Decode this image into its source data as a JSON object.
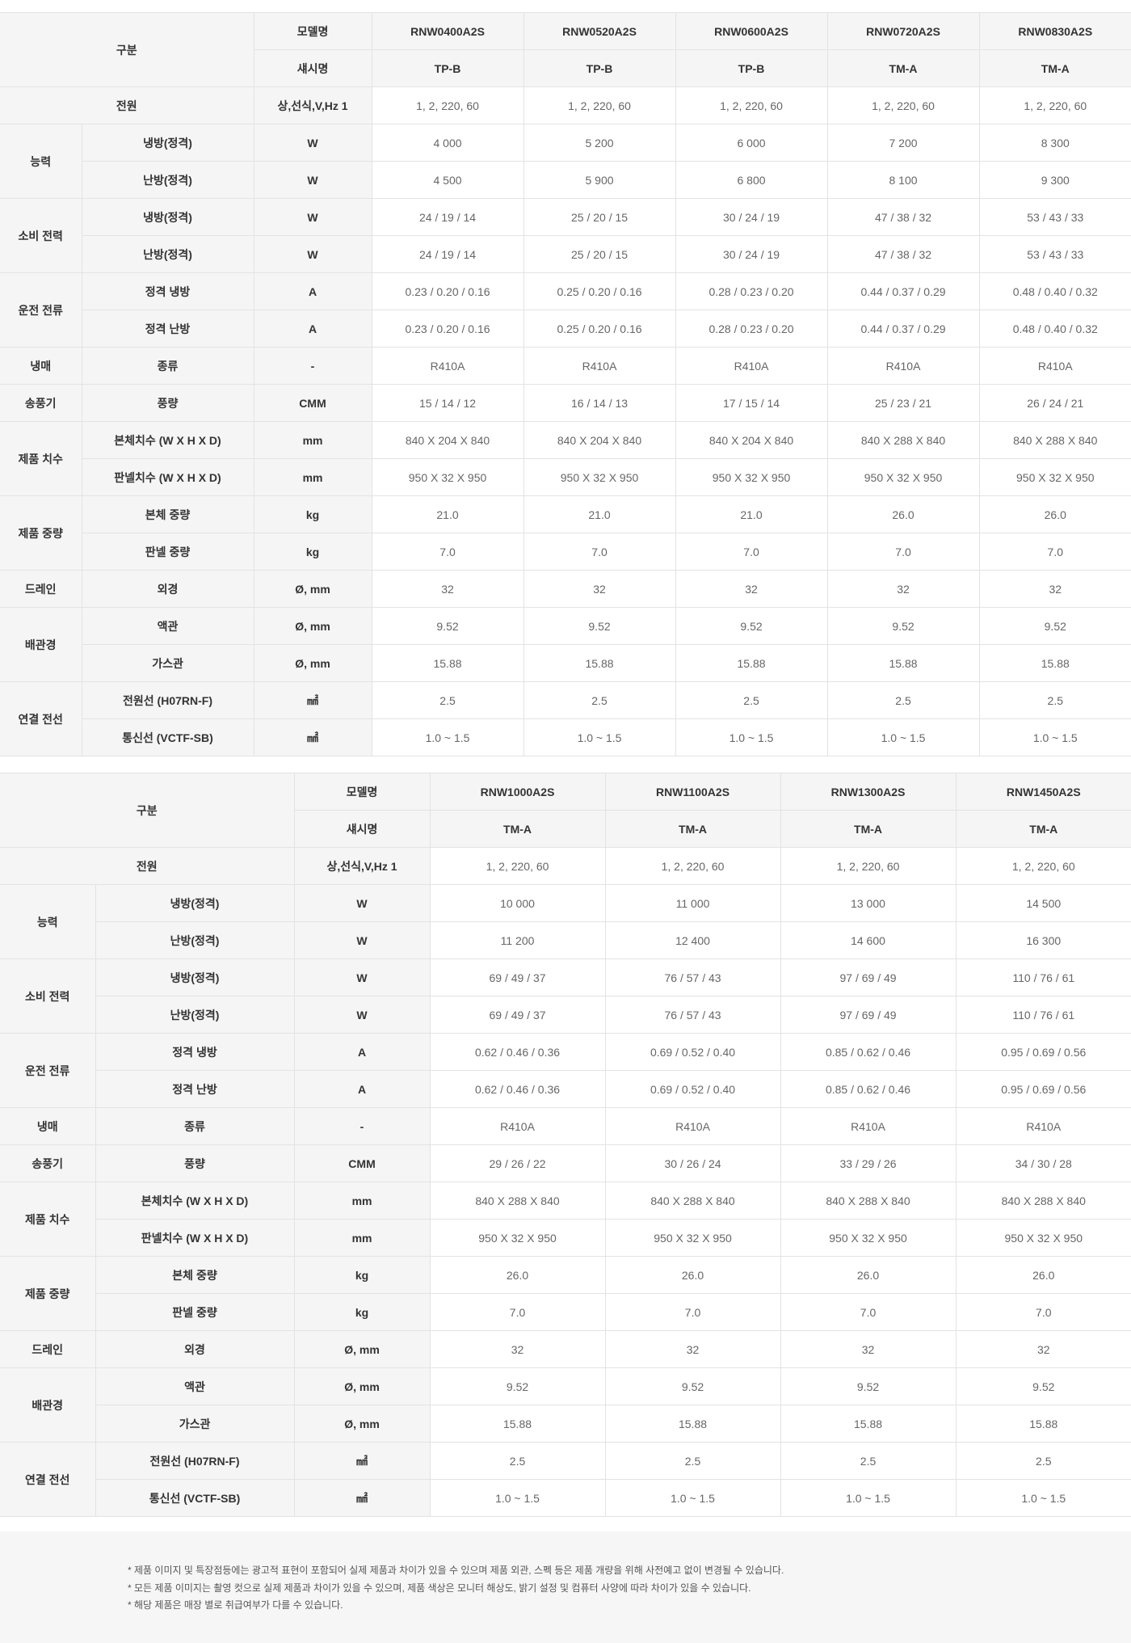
{
  "header_labels": {
    "category": "구분",
    "model": "모델명",
    "chassis": "섀시명"
  },
  "tables": [
    {
      "models": [
        "RNW0400A2S",
        "RNW0520A2S",
        "RNW0600A2S",
        "RNW0720A2S",
        "RNW0830A2S"
      ],
      "chassis": [
        "TP-B",
        "TP-B",
        "TP-B",
        "TM-A",
        "TM-A"
      ],
      "rows": [
        {
          "group": "전원",
          "label": "",
          "unit": "상,선식,V,Hz 1",
          "values": [
            "1, 2, 220, 60",
            "1, 2, 220, 60",
            "1, 2, 220, 60",
            "1, 2, 220, 60",
            "1, 2, 220, 60"
          ]
        },
        {
          "group": "능력",
          "label": "냉방(정격)",
          "unit": "W",
          "values": [
            "4 000",
            "5 200",
            "6 000",
            "7 200",
            "8 300"
          ]
        },
        {
          "group": "능력",
          "label": "난방(정격)",
          "unit": "W",
          "values": [
            "4 500",
            "5 900",
            "6 800",
            "8 100",
            "9 300"
          ]
        },
        {
          "group": "소비 전력",
          "label": "냉방(정격)",
          "unit": "W",
          "values": [
            "24 / 19 / 14",
            "25 / 20 / 15",
            "30 / 24 / 19",
            "47 / 38 / 32",
            "53 / 43 / 33"
          ]
        },
        {
          "group": "소비 전력",
          "label": "난방(정격)",
          "unit": "W",
          "values": [
            "24 / 19 / 14",
            "25 / 20 / 15",
            "30 / 24 / 19",
            "47 / 38 / 32",
            "53 / 43 / 33"
          ]
        },
        {
          "group": "운전 전류",
          "label": "정격 냉방",
          "unit": "A",
          "values": [
            "0.23 / 0.20 / 0.16",
            "0.25 / 0.20 / 0.16",
            "0.28 / 0.23 / 0.20",
            "0.44 / 0.37 / 0.29",
            "0.48 / 0.40 / 0.32"
          ]
        },
        {
          "group": "운전 전류",
          "label": "정격 난방",
          "unit": "A",
          "values": [
            "0.23 / 0.20 / 0.16",
            "0.25 / 0.20 / 0.16",
            "0.28 / 0.23 / 0.20",
            "0.44 / 0.37 / 0.29",
            "0.48 / 0.40 / 0.32"
          ]
        },
        {
          "group": "냉매",
          "label": "종류",
          "unit": "-",
          "values": [
            "R410A",
            "R410A",
            "R410A",
            "R410A",
            "R410A"
          ]
        },
        {
          "group": "송풍기",
          "label": "풍량",
          "unit": "CMM",
          "values": [
            "15 / 14 / 12",
            "16 / 14 / 13",
            "17 / 15 / 14",
            "25 / 23 / 21",
            "26 / 24 / 21"
          ]
        },
        {
          "group": "제품 치수",
          "label": "본체치수 (W X H X D)",
          "unit": "mm",
          "values": [
            "840 X 204 X 840",
            "840 X 204 X 840",
            "840 X 204 X 840",
            "840 X 288 X 840",
            "840 X 288 X 840"
          ]
        },
        {
          "group": "제품 치수",
          "label": "판넬치수 (W X H X D)",
          "unit": "mm",
          "values": [
            "950 X 32 X 950",
            "950 X 32 X 950",
            "950 X 32 X 950",
            "950 X 32 X 950",
            "950 X 32 X 950"
          ]
        },
        {
          "group": "제품 중량",
          "label": "본체 중량",
          "unit": "kg",
          "values": [
            "21.0",
            "21.0",
            "21.0",
            "26.0",
            "26.0"
          ]
        },
        {
          "group": "제품 중량",
          "label": "판넬 중량",
          "unit": "kg",
          "values": [
            "7.0",
            "7.0",
            "7.0",
            "7.0",
            "7.0"
          ]
        },
        {
          "group": "드레인",
          "label": "외경",
          "unit": "Ø, mm",
          "values": [
            "32",
            "32",
            "32",
            "32",
            "32"
          ]
        },
        {
          "group": "배관경",
          "label": "액관",
          "unit": "Ø, mm",
          "values": [
            "9.52",
            "9.52",
            "9.52",
            "9.52",
            "9.52"
          ]
        },
        {
          "group": "배관경",
          "label": "가스관",
          "unit": "Ø, mm",
          "values": [
            "15.88",
            "15.88",
            "15.88",
            "15.88",
            "15.88"
          ]
        },
        {
          "group": "연결 전선",
          "label": "전원선 (H07RN-F)",
          "unit": "㎟",
          "values": [
            "2.5",
            "2.5",
            "2.5",
            "2.5",
            "2.5"
          ]
        },
        {
          "group": "연결 전선",
          "label": "통신선 (VCTF-SB)",
          "unit": "㎟",
          "values": [
            "1.0 ~ 1.5",
            "1.0 ~ 1.5",
            "1.0 ~ 1.5",
            "1.0 ~ 1.5",
            "1.0 ~ 1.5"
          ]
        }
      ]
    },
    {
      "models": [
        "RNW1000A2S",
        "RNW1100A2S",
        "RNW1300A2S",
        "RNW1450A2S"
      ],
      "chassis": [
        "TM-A",
        "TM-A",
        "TM-A",
        "TM-A"
      ],
      "rows": [
        {
          "group": "전원",
          "label": "",
          "unit": "상,선식,V,Hz 1",
          "values": [
            "1, 2, 220, 60",
            "1, 2, 220, 60",
            "1, 2, 220, 60",
            "1, 2, 220, 60"
          ]
        },
        {
          "group": "능력",
          "label": "냉방(정격)",
          "unit": "W",
          "values": [
            "10 000",
            "11 000",
            "13 000",
            "14 500"
          ]
        },
        {
          "group": "능력",
          "label": "난방(정격)",
          "unit": "W",
          "values": [
            "11 200",
            "12 400",
            "14 600",
            "16 300"
          ]
        },
        {
          "group": "소비 전력",
          "label": "냉방(정격)",
          "unit": "W",
          "values": [
            "69 / 49 / 37",
            "76 / 57 / 43",
            "97 / 69 / 49",
            "110 / 76 / 61"
          ]
        },
        {
          "group": "소비 전력",
          "label": "난방(정격)",
          "unit": "W",
          "values": [
            "69 / 49 / 37",
            "76 / 57 / 43",
            "97 / 69 / 49",
            "110 / 76 / 61"
          ]
        },
        {
          "group": "운전 전류",
          "label": "정격 냉방",
          "unit": "A",
          "values": [
            "0.62 / 0.46 / 0.36",
            "0.69 / 0.52 / 0.40",
            "0.85 / 0.62 / 0.46",
            "0.95 / 0.69 / 0.56"
          ]
        },
        {
          "group": "운전 전류",
          "label": "정격 난방",
          "unit": "A",
          "values": [
            "0.62 / 0.46 / 0.36",
            "0.69 / 0.52 / 0.40",
            "0.85 / 0.62 / 0.46",
            "0.95 / 0.69 / 0.56"
          ]
        },
        {
          "group": "냉매",
          "label": "종류",
          "unit": "-",
          "values": [
            "R410A",
            "R410A",
            "R410A",
            "R410A"
          ]
        },
        {
          "group": "송풍기",
          "label": "풍량",
          "unit": "CMM",
          "values": [
            "29 / 26 / 22",
            "30 / 26 / 24",
            "33 / 29 / 26",
            "34 / 30 / 28"
          ]
        },
        {
          "group": "제품 치수",
          "label": "본체치수 (W X H X D)",
          "unit": "mm",
          "values": [
            "840 X 288 X 840",
            "840 X 288 X 840",
            "840 X 288 X 840",
            "840 X 288 X 840"
          ]
        },
        {
          "group": "제품 치수",
          "label": "판넬치수 (W X H X D)",
          "unit": "mm",
          "values": [
            "950 X 32 X 950",
            "950 X 32 X 950",
            "950 X 32 X 950",
            "950 X 32 X 950"
          ]
        },
        {
          "group": "제품 중량",
          "label": "본체 중량",
          "unit": "kg",
          "values": [
            "26.0",
            "26.0",
            "26.0",
            "26.0"
          ]
        },
        {
          "group": "제품 중량",
          "label": "판넬 중량",
          "unit": "kg",
          "values": [
            "7.0",
            "7.0",
            "7.0",
            "7.0"
          ]
        },
        {
          "group": "드레인",
          "label": "외경",
          "unit": "Ø, mm",
          "values": [
            "32",
            "32",
            "32",
            "32"
          ]
        },
        {
          "group": "배관경",
          "label": "액관",
          "unit": "Ø, mm",
          "values": [
            "9.52",
            "9.52",
            "9.52",
            "9.52"
          ]
        },
        {
          "group": "배관경",
          "label": "가스관",
          "unit": "Ø, mm",
          "values": [
            "15.88",
            "15.88",
            "15.88",
            "15.88"
          ]
        },
        {
          "group": "연결 전선",
          "label": "전원선 (H07RN-F)",
          "unit": "㎟",
          "values": [
            "2.5",
            "2.5",
            "2.5",
            "2.5"
          ]
        },
        {
          "group": "연결 전선",
          "label": "통신선 (VCTF-SB)",
          "unit": "㎟",
          "values": [
            "1.0 ~ 1.5",
            "1.0 ~ 1.5",
            "1.0 ~ 1.5",
            "1.0 ~ 1.5"
          ]
        }
      ]
    }
  ],
  "notes": [
    "제품 이미지 및 특장점등에는 광고적 표현이 포함되어 실제 제품과 차이가 있을 수 있으며 제품 외관, 스펙 등은 제품 개량을 위해 사전예고 없이 변경될 수 있습니다.",
    "모든 제품 이미지는 촬영 컷으로 실제 제품과 차이가 있을 수 있으며, 제품 색상은 모니터 해상도, 밝기 설정 및 컴퓨터 사양에 따라 차이가 있을 수 있습니다.",
    "해당 제품은 매장 별로 취급여부가 다를 수 있습니다."
  ]
}
